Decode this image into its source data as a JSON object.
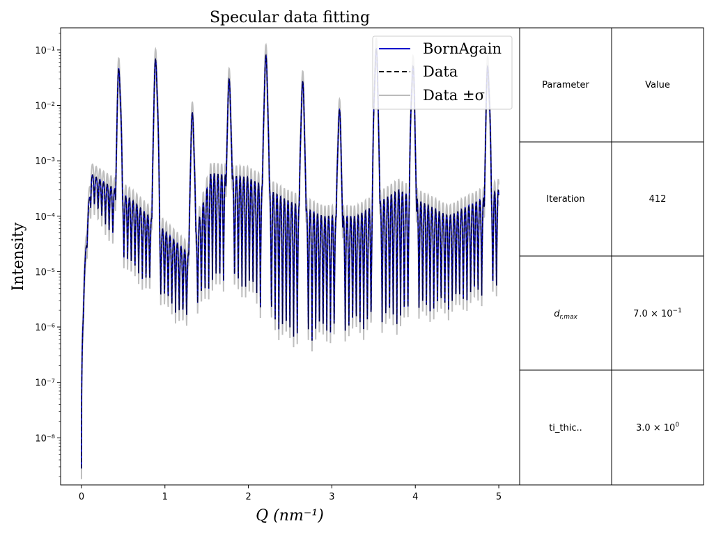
{
  "chart_data": {
    "type": "line",
    "title": "Specular data fitting",
    "xlabel": "Q (nm⁻¹)",
    "ylabel": "Intensity",
    "xlim": [
      -0.25,
      5.25
    ],
    "ylim_log10": [
      -8.85,
      -0.6
    ],
    "yscale": "log",
    "grid": false,
    "x_ticks": [
      "0",
      "1",
      "2",
      "3",
      "4",
      "5"
    ],
    "y_ticks": [
      {
        "exp": -8,
        "label": "10⁻⁸"
      },
      {
        "exp": -7,
        "label": "10⁻⁷"
      },
      {
        "exp": -6,
        "label": "10⁻⁶"
      },
      {
        "exp": -5,
        "label": "10⁻⁵"
      },
      {
        "exp": -4,
        "label": "10⁻⁴"
      },
      {
        "exp": -3,
        "label": "10⁻³"
      },
      {
        "exp": -2,
        "label": "10⁻²"
      },
      {
        "exp": -1,
        "label": "10⁻¹"
      }
    ],
    "legend": {
      "position": "top-right",
      "entries": [
        {
          "label": "BornAgain",
          "color": "#0000cc",
          "style": "solid"
        },
        {
          "label": "Data",
          "color": "#000000",
          "style": "dashed"
        },
        {
          "label": "Data ±σ",
          "color": "#bbbbbb",
          "style": "solid"
        }
      ]
    },
    "bragg_peaks": [
      {
        "q": 0.45,
        "intensity": 0.05
      },
      {
        "q": 0.89,
        "intensity": 0.07
      },
      {
        "q": 1.33,
        "intensity": 0.0075
      },
      {
        "q": 1.77,
        "intensity": 0.03
      },
      {
        "q": 2.21,
        "intensity": 0.08
      },
      {
        "q": 2.65,
        "intensity": 0.027
      },
      {
        "q": 3.09,
        "intensity": 0.0085
      },
      {
        "q": 3.53,
        "intensity": 0.11
      },
      {
        "q": 3.97,
        "intensity": 0.055
      },
      {
        "q": 4.87,
        "intensity": 0.055
      }
    ],
    "q_min": 0.0,
    "q_max": 5.0,
    "intensity_at_q0": 2.8e-09,
    "background_envelope": [
      {
        "q": 0.1,
        "max": 0.0006,
        "min": 0.0002
      },
      {
        "q": 0.6,
        "max": 0.0002,
        "min": 1e-05
      },
      {
        "q": 1.3,
        "max": 2e-05,
        "min": 1e-06
      },
      {
        "q": 1.55,
        "max": 0.0006,
        "min": 5e-06
      },
      {
        "q": 2.0,
        "max": 0.0005,
        "min": 4e-06
      },
      {
        "q": 2.45,
        "max": 0.0002,
        "min": 5e-07
      },
      {
        "q": 2.9,
        "max": 0.0001,
        "min": 6e-07
      },
      {
        "q": 3.3,
        "max": 0.0001,
        "min": 8e-07
      },
      {
        "q": 3.8,
        "max": 0.0003,
        "min": 1e-06
      },
      {
        "q": 4.4,
        "max": 0.0001,
        "min": 2e-06
      },
      {
        "q": 5.0,
        "max": 0.0003,
        "min": 4e-06
      }
    ]
  },
  "table": {
    "headers": [
      "Parameter",
      "Value"
    ],
    "rows": [
      {
        "parameter": "Iteration",
        "value": "412"
      },
      {
        "parameter": "d_r,max",
        "value_mantissa": "7.0",
        "value_exponent": "−1"
      },
      {
        "parameter": "ti_thic..",
        "value_mantissa": "3.0",
        "value_exponent": "0"
      }
    ]
  }
}
